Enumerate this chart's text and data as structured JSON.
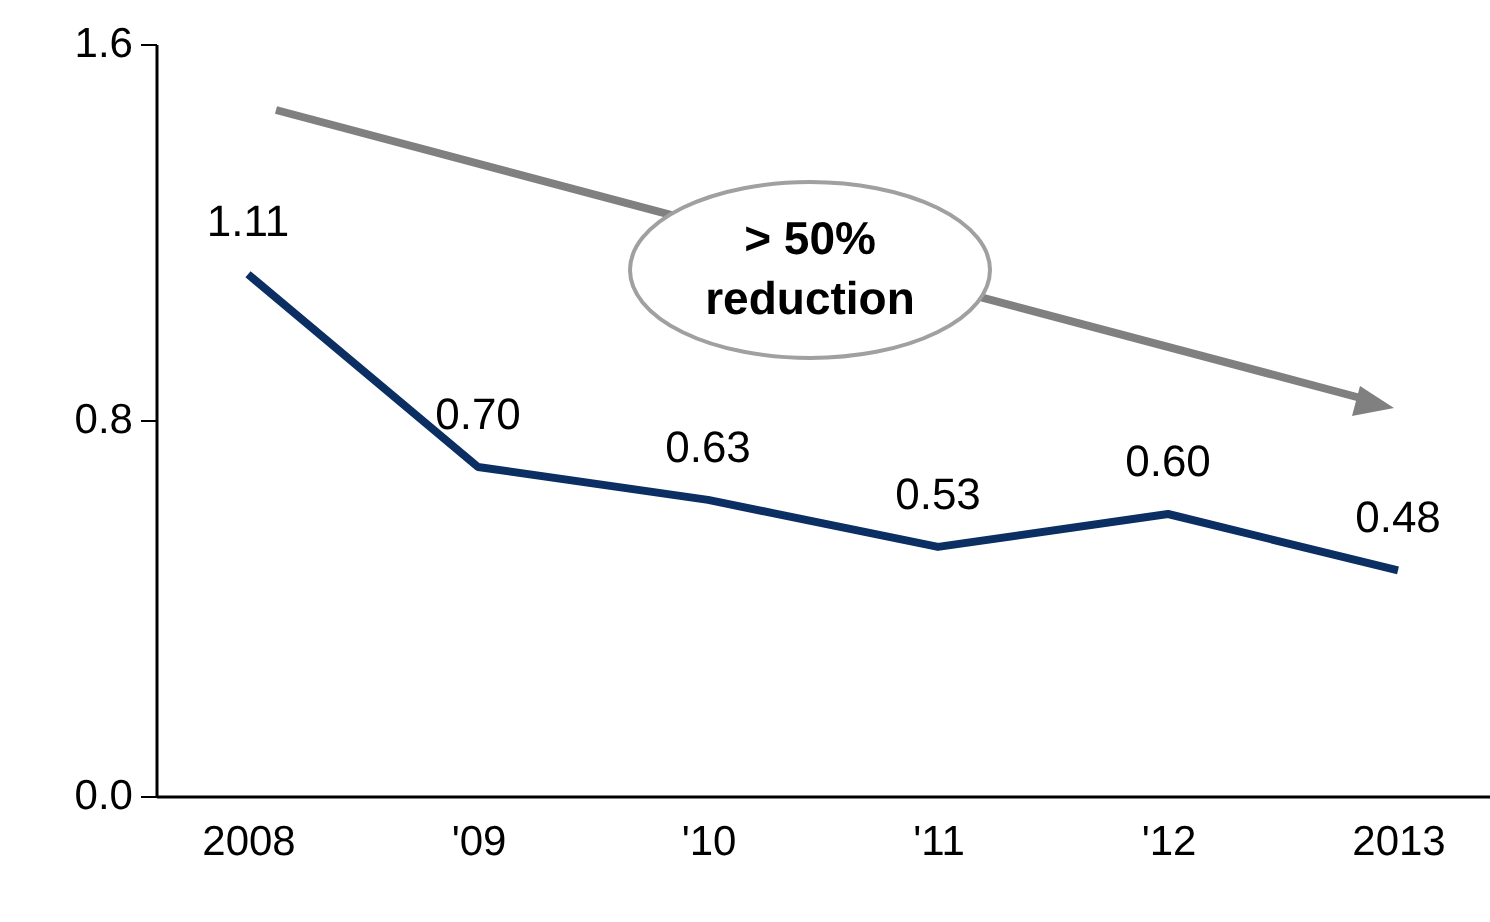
{
  "chart_data": {
    "type": "line",
    "categories": [
      "2008",
      "'09",
      "'10",
      "'11",
      "'12",
      "2013"
    ],
    "series": [
      {
        "color": "#0b2f63",
        "values": [
          1.11,
          0.7,
          0.63,
          0.53,
          0.6,
          0.48
        ],
        "value_labels": [
          "1.11",
          "0.70",
          "0.63",
          "0.53",
          "0.60",
          "0.48"
        ]
      }
    ],
    "ylim": [
      0,
      1.6
    ],
    "yticks": [
      {
        "value": 0,
        "label": "0.0"
      },
      {
        "value": 0.8,
        "label": "0.8"
      },
      {
        "value": 1.6,
        "label": "1.6"
      }
    ],
    "annotations": [
      "> 50% reduction"
    ],
    "grid": false,
    "marker": "none",
    "line_style": "solid"
  }
}
